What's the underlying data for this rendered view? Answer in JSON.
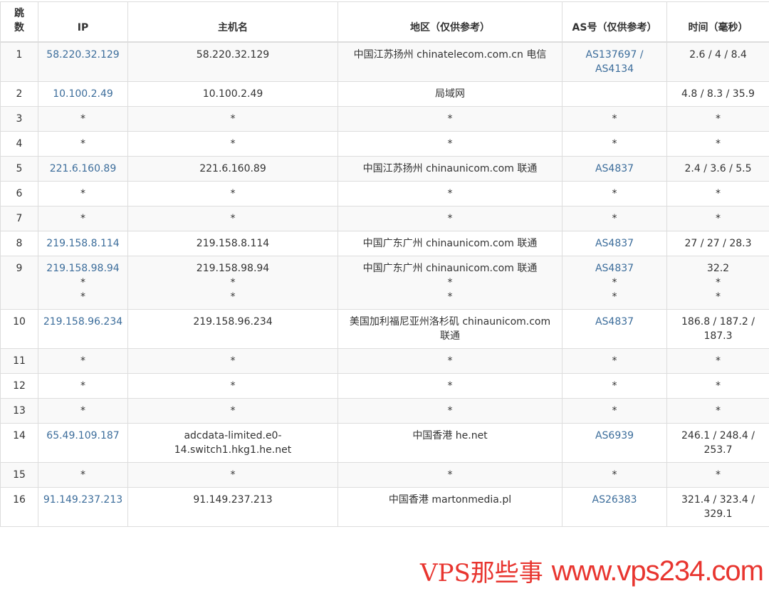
{
  "headers": [
    "跳数",
    "IP",
    "主机名",
    "地区（仅供参考）",
    "AS号（仅供参考）",
    "时间（毫秒）"
  ],
  "rows": [
    {
      "hop": "1",
      "ip": [
        "58.220.32.129"
      ],
      "host": [
        "58.220.32.129"
      ],
      "region": [
        "中国江苏扬州 chinatelecom.com.cn 电信"
      ],
      "as": [
        "AS137697 /",
        "AS4134"
      ],
      "time": [
        "2.6 / 4 / 8.4"
      ]
    },
    {
      "hop": "2",
      "ip": [
        "10.100.2.49"
      ],
      "host": [
        "10.100.2.49"
      ],
      "region": [
        "局域网"
      ],
      "as": [],
      "time": [
        "4.8 / 8.3 / 35.9"
      ]
    },
    {
      "hop": "3",
      "ip": [
        "*"
      ],
      "host": [
        "*"
      ],
      "region": [
        "*"
      ],
      "as": [
        "*"
      ],
      "time": [
        "*"
      ]
    },
    {
      "hop": "4",
      "ip": [
        "*"
      ],
      "host": [
        "*"
      ],
      "region": [
        "*"
      ],
      "as": [
        "*"
      ],
      "time": [
        "*"
      ]
    },
    {
      "hop": "5",
      "ip": [
        "221.6.160.89"
      ],
      "host": [
        "221.6.160.89"
      ],
      "region": [
        "中国江苏扬州 chinaunicom.com 联通"
      ],
      "as": [
        "AS4837"
      ],
      "time": [
        "2.4 / 3.6 / 5.5"
      ]
    },
    {
      "hop": "6",
      "ip": [
        "*"
      ],
      "host": [
        "*"
      ],
      "region": [
        "*"
      ],
      "as": [
        "*"
      ],
      "time": [
        "*"
      ]
    },
    {
      "hop": "7",
      "ip": [
        "*"
      ],
      "host": [
        "*"
      ],
      "region": [
        "*"
      ],
      "as": [
        "*"
      ],
      "time": [
        "*"
      ]
    },
    {
      "hop": "8",
      "ip": [
        "219.158.8.114"
      ],
      "host": [
        "219.158.8.114"
      ],
      "region": [
        "中国广东广州 chinaunicom.com 联通"
      ],
      "as": [
        "AS4837"
      ],
      "time": [
        "27 / 27 / 28.3"
      ]
    },
    {
      "hop": "9",
      "ip": [
        "219.158.98.94",
        "*",
        "*"
      ],
      "host": [
        "219.158.98.94",
        "*",
        "*"
      ],
      "region": [
        "中国广东广州 chinaunicom.com 联通",
        "*",
        "*"
      ],
      "as": [
        "AS4837",
        "*",
        "*"
      ],
      "time": [
        "32.2",
        "*",
        "*"
      ]
    },
    {
      "hop": "10",
      "ip": [
        "219.158.96.234"
      ],
      "host": [
        "219.158.96.234"
      ],
      "region": [
        "美国加利福尼亚州洛杉矶 chinaunicom.com",
        "联通"
      ],
      "as": [
        "AS4837"
      ],
      "time": [
        "186.8 / 187.2 /",
        "187.3"
      ]
    },
    {
      "hop": "11",
      "ip": [
        "*"
      ],
      "host": [
        "*"
      ],
      "region": [
        "*"
      ],
      "as": [
        "*"
      ],
      "time": [
        "*"
      ]
    },
    {
      "hop": "12",
      "ip": [
        "*"
      ],
      "host": [
        "*"
      ],
      "region": [
        "*"
      ],
      "as": [
        "*"
      ],
      "time": [
        "*"
      ]
    },
    {
      "hop": "13",
      "ip": [
        "*"
      ],
      "host": [
        "*"
      ],
      "region": [
        "*"
      ],
      "as": [
        "*"
      ],
      "time": [
        "*"
      ]
    },
    {
      "hop": "14",
      "ip": [
        "65.49.109.187"
      ],
      "host": [
        "adcdata-limited.e0-",
        "14.switch1.hkg1.he.net"
      ],
      "region": [
        "中国香港 he.net"
      ],
      "as": [
        "AS6939"
      ],
      "time": [
        "246.1 / 248.4 /",
        "253.7"
      ]
    },
    {
      "hop": "15",
      "ip": [
        "*"
      ],
      "host": [
        "*"
      ],
      "region": [
        "*"
      ],
      "as": [
        "*"
      ],
      "time": [
        "*"
      ]
    },
    {
      "hop": "16",
      "ip": [
        "91.149.237.213"
      ],
      "host": [
        "91.149.237.213"
      ],
      "region": [
        "中国香港 martonmedia.pl"
      ],
      "as": [
        "AS26383"
      ],
      "time": [
        "321.4 / 323.4 /",
        "329.1"
      ]
    }
  ],
  "watermark": {
    "line1": "VPS那些事",
    "line2": "www.vps234.com"
  },
  "colors": {
    "link": "#3c6d9b",
    "stripe": "#f9f9f9",
    "border": "#dddddd",
    "watermark": "#e8352f"
  }
}
